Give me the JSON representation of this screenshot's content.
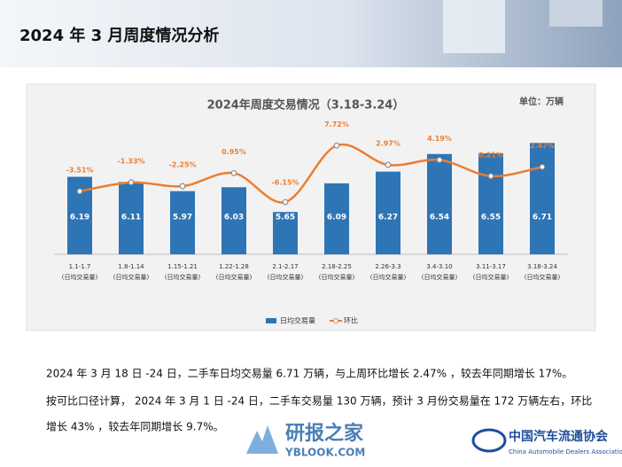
{
  "header": {
    "title": "2024 年 3 月周度情况分析"
  },
  "chart_data": {
    "type": "bar-line",
    "title": "2024年周度交易情况（3.18-3.24）",
    "unit": "单位：万辆",
    "categories": [
      "1.1-1.7",
      "1.8-1.14",
      "1.15-1.21",
      "1.22-1.28",
      "2.1-2.17",
      "2.18-2.25",
      "2.26-3.3",
      "3.4-3.10",
      "3.11-3.17",
      "3.18-3.24"
    ],
    "category_sublabel": "(日均交易量)",
    "series": [
      {
        "name": "日均交易量",
        "type": "bar",
        "color": "#2e75b6",
        "values": [
          6.19,
          6.11,
          5.97,
          6.03,
          5.65,
          6.09,
          6.27,
          6.54,
          6.55,
          6.71
        ]
      },
      {
        "name": "环比",
        "type": "line",
        "axis": "y2",
        "color": "#ed7d31",
        "values": [
          -3.51,
          -1.33,
          -2.25,
          0.95,
          -6.15,
          7.72,
          2.97,
          4.19,
          0.21,
          2.47
        ],
        "value_labels": [
          "-3.51%",
          "-1.33%",
          "-2.25%",
          "0.95%",
          "-6.15%",
          "7.72%",
          "2.97%",
          "4.19%",
          "0.21%",
          "2.47%"
        ]
      }
    ],
    "ylim": [
      5,
      7
    ],
    "y2lim": [
      -19,
      13
    ],
    "legend": "bottom"
  },
  "text": {
    "paragraphs": [
      "2024 年 3 月 18 日 -24 日，二手车日均交易量 6.71 万辆，与上周环比增长 2.47% ，较去年同期增长 17%。",
      "按可比口径计算， 2024 年 3 月 1 日 -24 日，二手车交易量 130 万辆，预计 3 月份交易量在 172 万辆左右，环比",
      "增长 43% ，较去年同期增长 9.7%。"
    ]
  },
  "watermark": {
    "name": "研报之家",
    "url": "YBLOOK.COM"
  },
  "logo": {
    "name": "中国汽车流通协会",
    "english": "China Automobile Dealers Association"
  }
}
